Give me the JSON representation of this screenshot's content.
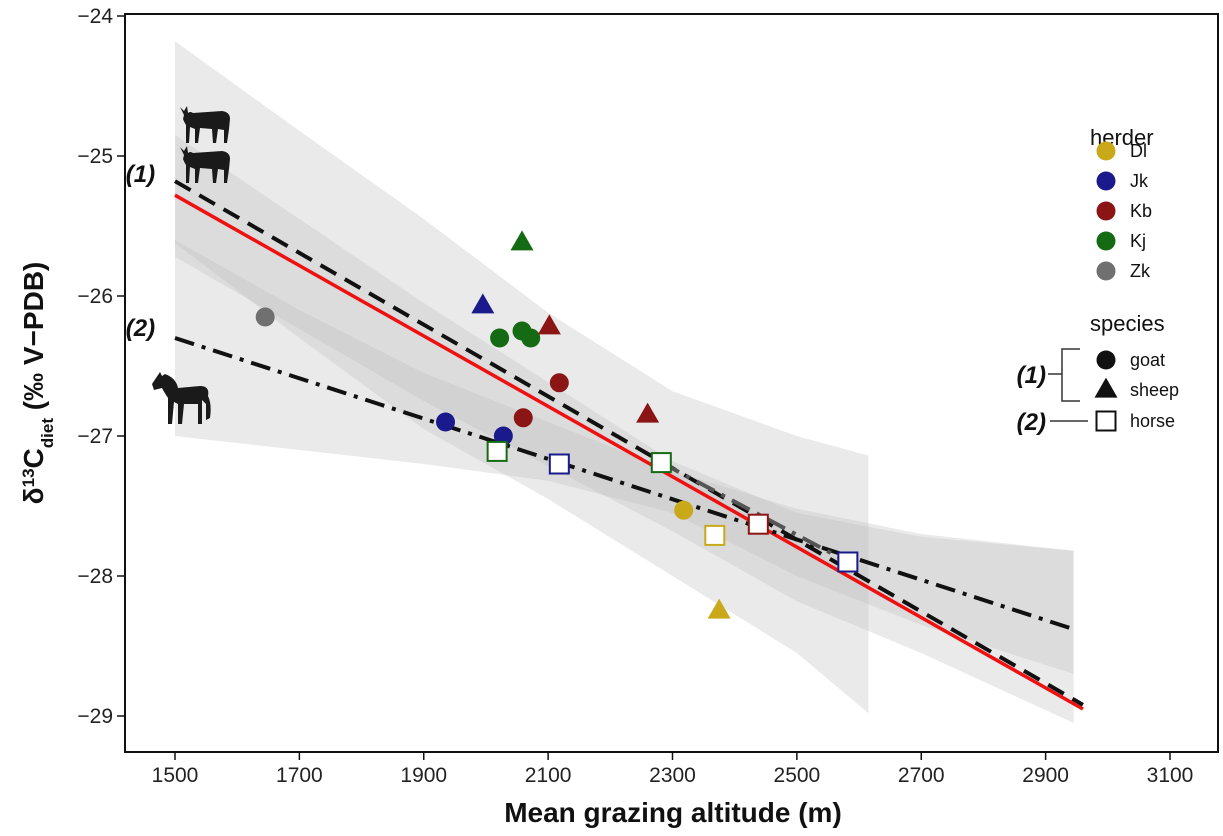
{
  "chart_data": {
    "type": "scatter",
    "xlabel": "Mean grazing altitude (m)",
    "ylabel": {
      "prefix": "δ",
      "sup": "13",
      "base": "C",
      "sub": "diet",
      "suffix": " (‰ V−PDB)"
    },
    "xlim": [
      1430,
      3150
    ],
    "ylim": [
      -29.3,
      -24.0
    ],
    "xticks": [
      1500,
      1700,
      1900,
      2100,
      2300,
      2500,
      2700,
      2900,
      3100
    ],
    "yticks": [
      -24,
      -25,
      -26,
      -27,
      -28,
      -29
    ],
    "grid": false,
    "herder_colors": {
      "Dl": "#c9a91a",
      "Jk": "#1a1a8c",
      "Kb": "#8b1414",
      "Kj": "#146b14",
      "Zk": "#707070"
    },
    "points": [
      {
        "herder": "Zk",
        "species": "goat",
        "x": 1645,
        "y": -26.15
      },
      {
        "herder": "Jk",
        "species": "goat",
        "x": 1935,
        "y": -26.9
      },
      {
        "herder": "Jk",
        "species": "goat",
        "x": 2028,
        "y": -27.0
      },
      {
        "herder": "Jk",
        "species": "sheep",
        "x": 1995,
        "y": -26.07
      },
      {
        "herder": "Kj",
        "species": "goat",
        "x": 2022,
        "y": -26.3
      },
      {
        "herder": "Kj",
        "species": "goat",
        "x": 2058,
        "y": -26.25
      },
      {
        "herder": "Kj",
        "species": "goat",
        "x": 2072,
        "y": -26.3
      },
      {
        "herder": "Kj",
        "species": "sheep",
        "x": 2058,
        "y": -25.62
      },
      {
        "herder": "Kb",
        "species": "sheep",
        "x": 2102,
        "y": -26.22
      },
      {
        "herder": "Kb",
        "species": "goat",
        "x": 2118,
        "y": -26.62
      },
      {
        "herder": "Kb",
        "species": "goat",
        "x": 2060,
        "y": -26.87
      },
      {
        "herder": "Kb",
        "species": "sheep",
        "x": 2260,
        "y": -26.85
      },
      {
        "herder": "Dl",
        "species": "goat",
        "x": 2318,
        "y": -27.53
      },
      {
        "herder": "Dl",
        "species": "sheep",
        "x": 2375,
        "y": -28.25
      },
      {
        "herder": "Kj",
        "species": "horse",
        "x": 2018,
        "y": -27.11
      },
      {
        "herder": "Jk",
        "species": "horse",
        "x": 2118,
        "y": -27.2
      },
      {
        "herder": "Kj",
        "species": "horse",
        "x": 2282,
        "y": -27.19
      },
      {
        "herder": "Dl",
        "species": "horse",
        "x": 2368,
        "y": -27.71
      },
      {
        "herder": "Kb",
        "species": "horse",
        "x": 2438,
        "y": -27.63
      },
      {
        "herder": "Jk",
        "species": "horse",
        "x": 2582,
        "y": -27.9
      }
    ],
    "lines": [
      {
        "id": "red-fit",
        "style": "solid",
        "color": "#ee1111",
        "from": [
          1500,
          -25.28
        ],
        "to": [
          2960,
          -28.95
        ]
      },
      {
        "id": "fit-1",
        "style": "dashed",
        "color": "#111111",
        "from": [
          1500,
          -25.18
        ],
        "to": [
          2960,
          -28.92
        ]
      },
      {
        "id": "fit-2",
        "style": "dashdot",
        "color": "#111111",
        "from": [
          1500,
          -26.3
        ],
        "to": [
          2945,
          -28.38
        ]
      },
      {
        "id": "fit-2-seg",
        "style": "dashdot",
        "color": "#555555",
        "from": [
          2282,
          -27.19
        ],
        "to": [
          2582,
          -27.9
        ]
      }
    ],
    "bands": [
      {
        "id": "band-1",
        "upper": [
          [
            1500,
            -24.18
          ],
          [
            1700,
            -24.82
          ],
          [
            1900,
            -25.45
          ],
          [
            2100,
            -26.12
          ],
          [
            2300,
            -26.68
          ],
          [
            2500,
            -27.0
          ],
          [
            2615,
            -27.14
          ]
        ],
        "lower": [
          [
            1500,
            -25.62
          ],
          [
            1700,
            -26.3
          ],
          [
            1900,
            -26.95
          ],
          [
            2100,
            -27.45
          ],
          [
            2300,
            -28.0
          ],
          [
            2500,
            -28.55
          ],
          [
            2615,
            -28.98
          ]
        ]
      },
      {
        "id": "band-red",
        "upper": [
          [
            1500,
            -24.85
          ],
          [
            1900,
            -26.05
          ],
          [
            2300,
            -27.18
          ],
          [
            2500,
            -27.55
          ],
          [
            2700,
            -27.72
          ],
          [
            2945,
            -27.82
          ]
        ],
        "lower": [
          [
            1500,
            -25.72
          ],
          [
            1900,
            -26.75
          ],
          [
            2300,
            -27.68
          ],
          [
            2500,
            -28.18
          ],
          [
            2700,
            -28.55
          ],
          [
            2945,
            -29.05
          ]
        ]
      },
      {
        "id": "band-2",
        "upper": [
          [
            1500,
            -25.6
          ],
          [
            1700,
            -26.1
          ],
          [
            1900,
            -26.55
          ],
          [
            2100,
            -26.9
          ],
          [
            2300,
            -27.25
          ],
          [
            2500,
            -27.52
          ],
          [
            2700,
            -27.7
          ],
          [
            2945,
            -27.82
          ]
        ],
        "lower": [
          [
            1500,
            -27.0
          ],
          [
            1700,
            -27.1
          ],
          [
            1900,
            -27.2
          ],
          [
            2100,
            -27.32
          ],
          [
            2300,
            -27.55
          ],
          [
            2500,
            -28.0
          ],
          [
            2700,
            -28.35
          ],
          [
            2945,
            -28.7
          ]
        ]
      }
    ],
    "group_labels": [
      {
        "text": "(1)",
        "x": 1468,
        "y": -25.17
      },
      {
        "text": "(2)",
        "x": 1468,
        "y": -26.27
      }
    ],
    "legend": {
      "position": "right",
      "herder_title": "herder",
      "herders": [
        "Dl",
        "Jk",
        "Kb",
        "Kj",
        "Zk"
      ],
      "species_title": "species",
      "species": [
        {
          "key": "goat",
          "label": "goat",
          "group": "(1)"
        },
        {
          "key": "sheep",
          "label": "sheep",
          "group": "(1)"
        },
        {
          "key": "horse",
          "label": "horse",
          "group": "(2)"
        }
      ]
    },
    "icons": [
      "goat-icon",
      "goat-icon",
      "horse-icon"
    ]
  }
}
